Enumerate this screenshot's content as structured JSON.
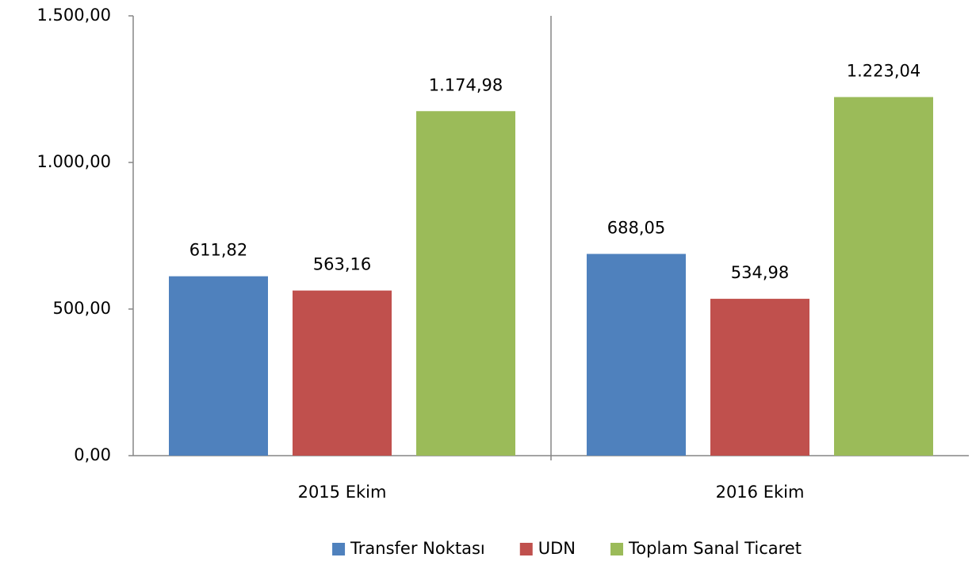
{
  "chart_data": {
    "type": "bar",
    "categories": [
      "2015 Ekim",
      "2016 Ekim"
    ],
    "series": [
      {
        "name": "Transfer Noktası",
        "color": "#4f81bd",
        "values": [
          611.82,
          688.05
        ],
        "value_labels": [
          "611,82",
          "688,05"
        ]
      },
      {
        "name": "UDN",
        "color": "#c0504d",
        "values": [
          563.16,
          534.98
        ],
        "value_labels": [
          "563,16",
          "534,98"
        ]
      },
      {
        "name": "Toplam Sanal Ticaret",
        "color": "#9bbb59",
        "values": [
          1174.98,
          1223.04
        ],
        "value_labels": [
          "1.174,98",
          "1.223,04"
        ]
      }
    ],
    "ylim": [
      0,
      1500
    ],
    "yticks": [
      {
        "value": 0,
        "label": "0,00"
      },
      {
        "value": 500,
        "label": "500,00"
      },
      {
        "value": 1000,
        "label": "1.000,00"
      },
      {
        "value": 1500,
        "label": "1.500,00"
      }
    ],
    "grid": false,
    "legend": "bottom"
  }
}
